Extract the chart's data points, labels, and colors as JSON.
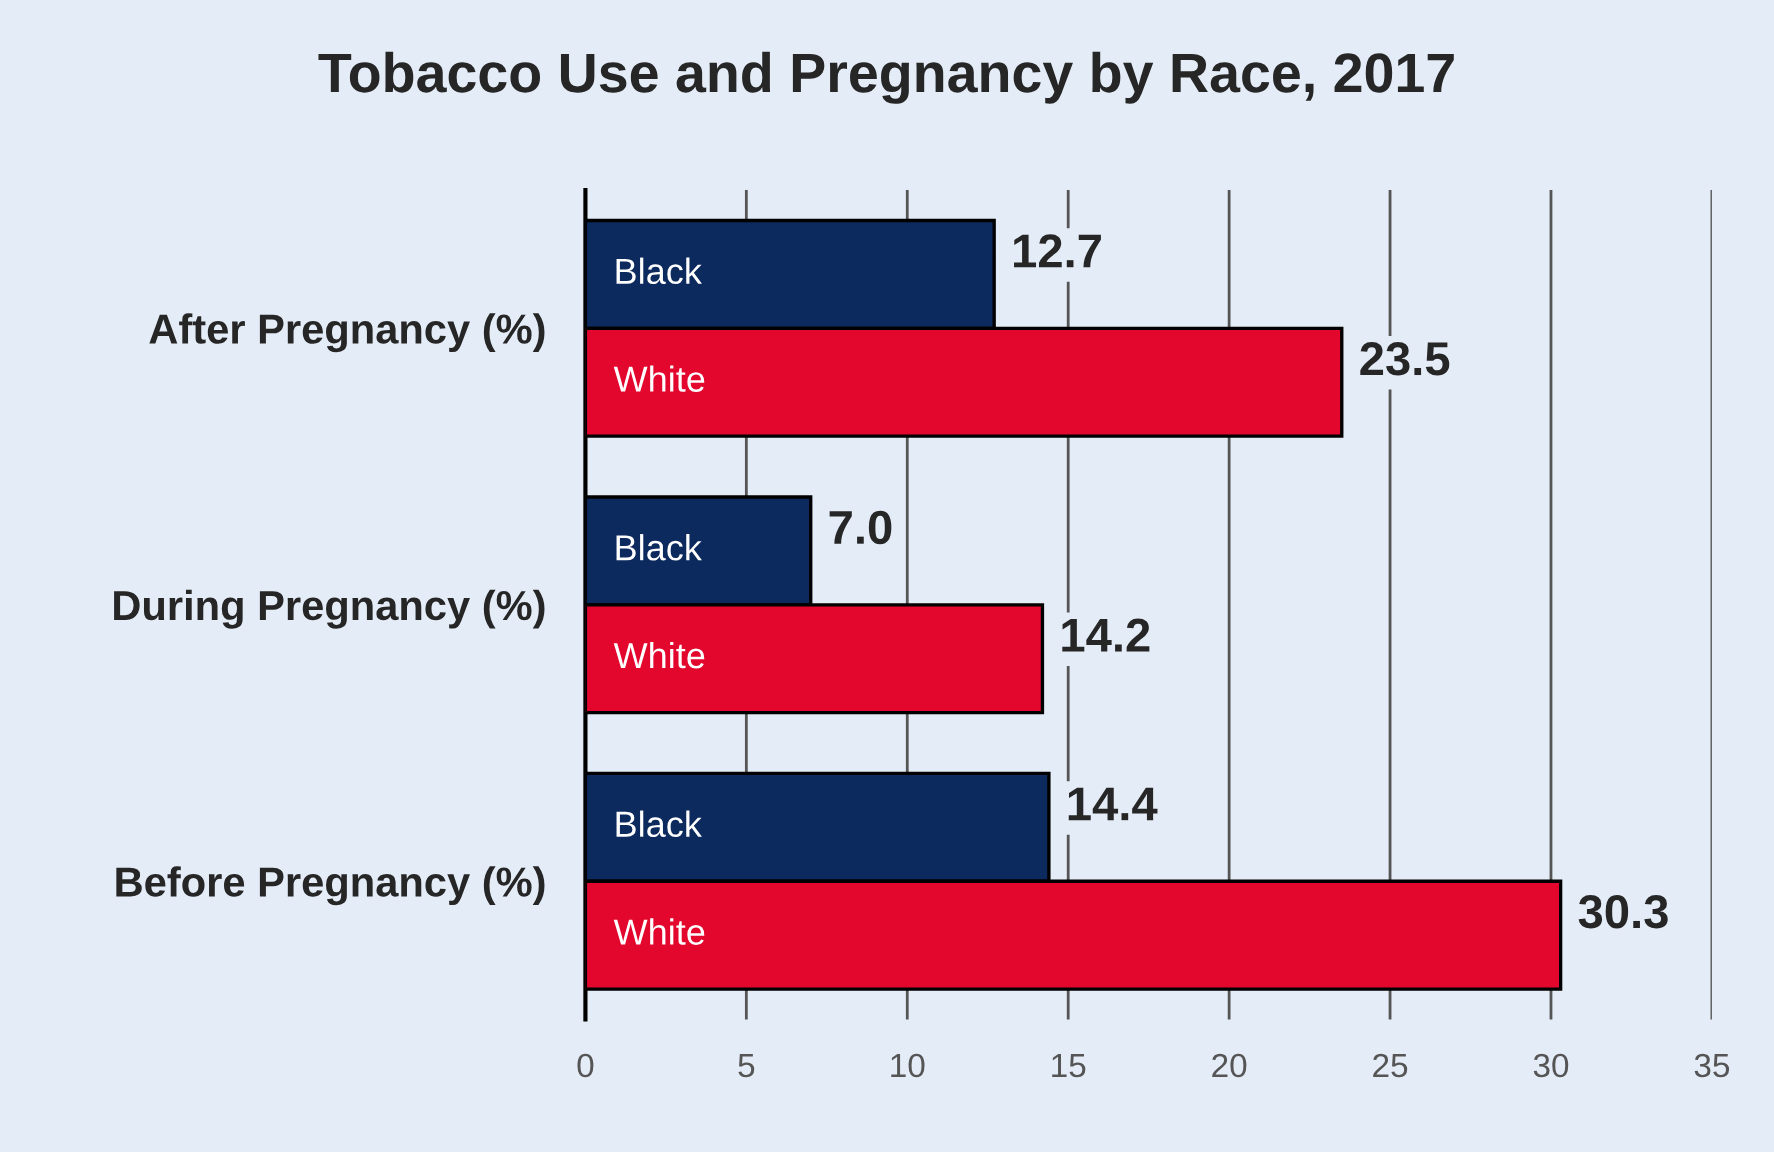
{
  "chart_data": {
    "type": "bar",
    "orientation": "horizontal",
    "title": "Tobacco Use and Pregnancy by Race, 2017",
    "categories": [
      "After Pregnancy (%)",
      "During Pregnancy (%)",
      "Before Pregnancy (%)"
    ],
    "series": [
      {
        "name": "Black",
        "color": "#0d2a5e",
        "values": [
          12.7,
          7.0,
          14.4
        ],
        "value_labels": [
          "12.7",
          "7.0",
          "14.4"
        ]
      },
      {
        "name": "White",
        "color": "#e3062d",
        "values": [
          23.5,
          14.2,
          30.3
        ],
        "value_labels": [
          "23.5",
          "14.2",
          "30.3"
        ]
      }
    ],
    "xlim": [
      0,
      35
    ],
    "xticks": [
      0,
      5,
      10,
      15,
      20,
      25,
      30,
      35
    ],
    "grid": "x",
    "legend": false
  }
}
